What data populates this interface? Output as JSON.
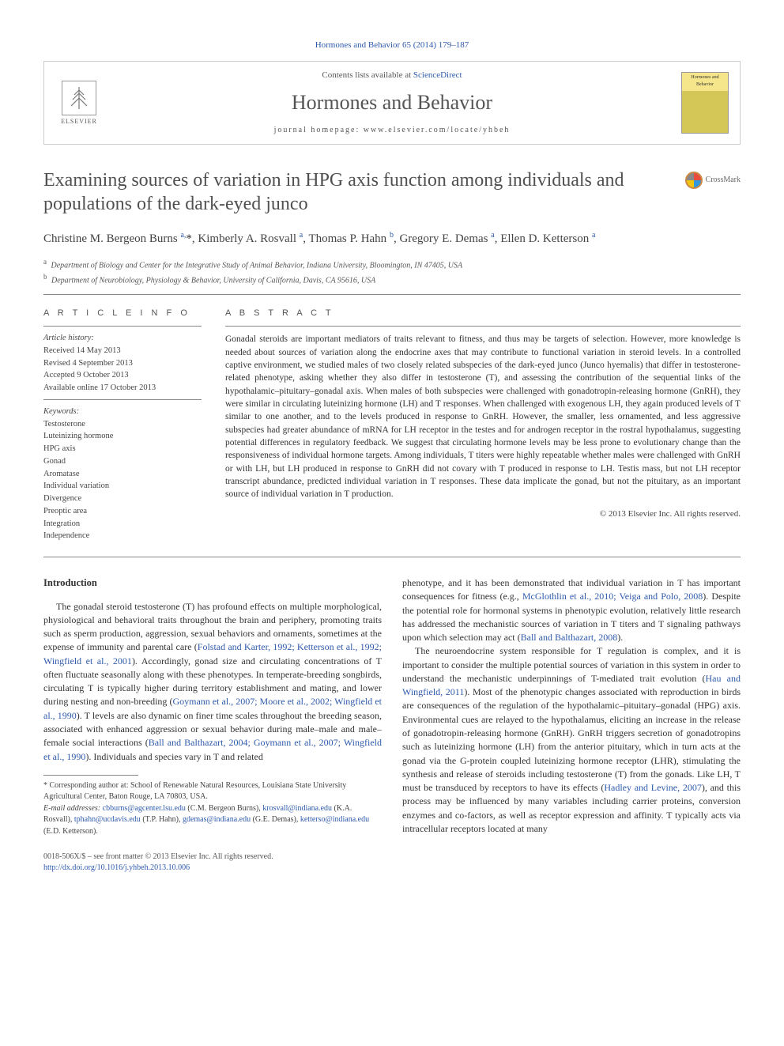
{
  "journal_ref": "Hormones and Behavior 65 (2014) 179–187",
  "header": {
    "contents_prefix": "Contents lists available at ",
    "contents_link": "ScienceDirect",
    "journal_name": "Hormones and Behavior",
    "homepage_prefix": "journal homepage: ",
    "homepage_url": "www.elsevier.com/locate/yhbeh",
    "elsevier_label": "ELSEVIER",
    "cover_label": "Hormones and Behavior"
  },
  "crossmark_label": "CrossMark",
  "title": "Examining sources of variation in HPG axis function among individuals and populations of the dark-eyed junco",
  "authors_html": "Christine M. Bergeon Burns <sup>a,</sup>*, Kimberly A. Rosvall <sup>a</sup>, Thomas P. Hahn <sup>b</sup>, Gregory E. Demas <sup>a</sup>, Ellen D. Ketterson <sup>a</sup>",
  "authors": [
    {
      "name": "Christine M. Bergeon Burns",
      "aff": "a",
      "corr": true
    },
    {
      "name": "Kimberly A. Rosvall",
      "aff": "a"
    },
    {
      "name": "Thomas P. Hahn",
      "aff": "b"
    },
    {
      "name": "Gregory E. Demas",
      "aff": "a"
    },
    {
      "name": "Ellen D. Ketterson",
      "aff": "a"
    }
  ],
  "affiliations": [
    {
      "sup": "a",
      "text": "Department of Biology and Center for the Integrative Study of Animal Behavior, Indiana University, Bloomington, IN 47405, USA"
    },
    {
      "sup": "b",
      "text": "Department of Neurobiology, Physiology & Behavior, University of California, Davis, CA 95616, USA"
    }
  ],
  "info": {
    "heading": "A R T I C L E   I N F O",
    "history_label": "Article history:",
    "history": [
      "Received 14 May 2013",
      "Revised 4 September 2013",
      "Accepted 9 October 2013",
      "Available online 17 October 2013"
    ],
    "keywords_label": "Keywords:",
    "keywords": [
      "Testosterone",
      "Luteinizing hormone",
      "HPG axis",
      "Gonad",
      "Aromatase",
      "Individual variation",
      "Divergence",
      "Preoptic area",
      "Integration",
      "Independence"
    ]
  },
  "abstract": {
    "heading": "A B S T R A C T",
    "text": "Gonadal steroids are important mediators of traits relevant to fitness, and thus may be targets of selection. However, more knowledge is needed about sources of variation along the endocrine axes that may contribute to functional variation in steroid levels. In a controlled captive environment, we studied males of two closely related subspecies of the dark-eyed junco (Junco hyemalis) that differ in testosterone-related phenotype, asking whether they also differ in testosterone (T), and assessing the contribution of the sequential links of the hypothalamic–pituitary–gonadal axis. When males of both subspecies were challenged with gonadotropin-releasing hormone (GnRH), they were similar in circulating luteinizing hormone (LH) and T responses. When challenged with exogenous LH, they again produced levels of T similar to one another, and to the levels produced in response to GnRH. However, the smaller, less ornamented, and less aggressive subspecies had greater abundance of mRNA for LH receptor in the testes and for androgen receptor in the rostral hypothalamus, suggesting potential differences in regulatory feedback. We suggest that circulating hormone levels may be less prone to evolutionary change than the responsiveness of individual hormone targets. Among individuals, T titers were highly repeatable whether males were challenged with GnRH or with LH, but LH produced in response to GnRH did not covary with T produced in response to LH. Testis mass, but not LH receptor transcript abundance, predicted individual variation in T responses. These data implicate the gonad, but not the pituitary, as an important source of individual variation in T production.",
    "copyright": "© 2013 Elsevier Inc. All rights reserved."
  },
  "introduction": {
    "heading": "Introduction",
    "col1_p1_pre": "The gonadal steroid testosterone (T) has profound effects on multiple morphological, physiological and behavioral traits throughout the brain and periphery, promoting traits such as sperm production, aggression, sexual behaviors and ornaments, sometimes at the expense of immunity and parental care (",
    "col1_p1_ref1": "Folstad and Karter, 1992; Ketterson et al., 1992; Wingfield et al., 2001",
    "col1_p1_mid1": "). Accordingly, gonad size and circulating concentrations of T often fluctuate seasonally along with these phenotypes. In temperate-breeding songbirds, circulating T is typically higher during territory establishment and mating, and lower during nesting and non-breeding (",
    "col1_p1_ref2": "Goymann et al., 2007; Moore et al., 2002; Wingfield et al., 1990",
    "col1_p1_mid2": "). T levels are also dynamic on finer time scales throughout the breeding season, associated with enhanced aggression or sexual behavior during male–male and male–female social interactions (",
    "col1_p1_ref3": "Ball and Balthazart, 2004; Goymann et al., 2007; Wingfield et al., 1990",
    "col1_p1_post": "). Individuals and species vary in T and related",
    "col2_p1_pre": "phenotype, and it has been demonstrated that individual variation in T has important consequences for fitness (e.g., ",
    "col2_p1_ref1": "McGlothlin et al., 2010; Veiga and Polo, 2008",
    "col2_p1_mid1": "). Despite the potential role for hormonal systems in phenotypic evolution, relatively little research has addressed the mechanistic sources of variation in T titers and T signaling pathways upon which selection may act (",
    "col2_p1_ref2": "Ball and Balthazart, 2008",
    "col2_p1_post": ").",
    "col2_p2_pre": "The neuroendocrine system responsible for T regulation is complex, and it is important to consider the multiple potential sources of variation in this system in order to understand the mechanistic underpinnings of T-mediated trait evolution (",
    "col2_p2_ref1": "Hau and Wingfield, 2011",
    "col2_p2_mid1": "). Most of the phenotypic changes associated with reproduction in birds are consequences of the regulation of the hypothalamic–pituitary–gonadal (HPG) axis. Environmental cues are relayed to the hypothalamus, eliciting an increase in the release of gonadotropin-releasing hormone (GnRH). GnRH triggers secretion of gonadotropins such as luteinizing hormone (LH) from the anterior pituitary, which in turn acts at the gonad via the G-protein coupled luteinizing hormone receptor (LHR), stimulating the synthesis and release of steroids including testosterone (T) from the gonads. Like LH, T must be transduced by receptors to have its effects (",
    "col2_p2_ref2": "Hadley and Levine, 2007",
    "col2_p2_post": "), and this process may be influenced by many variables including carrier proteins, conversion enzymes and co-factors, as well as receptor expression and affinity. T typically acts via intracellular receptors located at many"
  },
  "footnotes": {
    "corr": "* Corresponding author at: School of Renewable Natural Resources, Louisiana State University Agricultural Center, Baton Rouge, LA 70803, USA.",
    "email_label": "E-mail addresses: ",
    "emails": [
      {
        "addr": "cbburns@agcenter.lsu.edu",
        "who": " (C.M. Bergeon Burns), "
      },
      {
        "addr": "krosvall@indiana.edu",
        "who": " (K.A. Rosvall), "
      },
      {
        "addr": "tphahn@ucdavis.edu",
        "who": " (T.P. Hahn), "
      },
      {
        "addr": "gdemas@indiana.edu",
        "who": " (G.E. Demas), "
      },
      {
        "addr": "ketterso@indiana.edu",
        "who": " (E.D. Ketterson)."
      }
    ]
  },
  "footer": {
    "issn": "0018-506X/$ – see front matter © 2013 Elsevier Inc. All rights reserved.",
    "doi": "http://dx.doi.org/10.1016/j.yhbeh.2013.10.006"
  },
  "colors": {
    "link": "#2e5aac",
    "text": "#333333",
    "heading_gray": "#505050",
    "rule": "#888888"
  }
}
